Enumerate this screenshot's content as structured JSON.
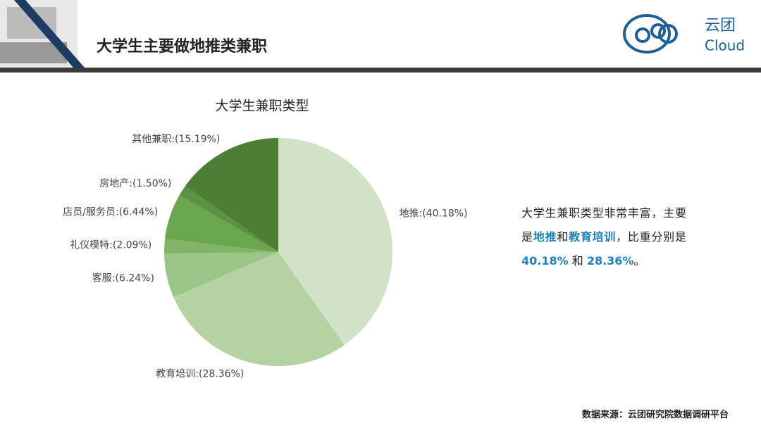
{
  "header": {
    "title": "大学生主要做地推类兼职",
    "logo_cn": "云团",
    "logo_en": "Cloud"
  },
  "chart_data": {
    "type": "pie",
    "title": "大学生兼职类型",
    "categories": [
      "地推",
      "教育培训",
      "客服",
      "礼仪模特",
      "店员/服务员",
      "房地产",
      "其他兼职"
    ],
    "values": [
      40.18,
      28.36,
      6.24,
      2.09,
      6.44,
      1.5,
      15.19
    ],
    "value_labels": [
      ":(40.18%)",
      ":(28.36%)",
      ":(6.24%)",
      ":(2.09%)",
      ":(6.44%)",
      ":(1.50%)",
      ":(15.19%)"
    ],
    "colors": [
      "#d2e2c6",
      "#b5d2a3",
      "#9bc488",
      "#80b466",
      "#6ba64f",
      "#5a9341",
      "#4e7e35"
    ]
  },
  "summary": {
    "segments": [
      {
        "text": "大学生兼职类型非常丰富，主要是",
        "highlight": false
      },
      {
        "text": "地推",
        "highlight": true
      },
      {
        "text": "和",
        "highlight": false
      },
      {
        "text": "教育培训",
        "highlight": true
      },
      {
        "text": "，比重分别是 ",
        "highlight": false
      },
      {
        "text": "40.18%",
        "highlight": true
      },
      {
        "text": " 和 ",
        "highlight": false
      },
      {
        "text": "28.36%",
        "highlight": true
      },
      {
        "text": "。",
        "highlight": false
      }
    ]
  },
  "footer": {
    "source": "数据来源：云团研究院数据调研平台"
  }
}
